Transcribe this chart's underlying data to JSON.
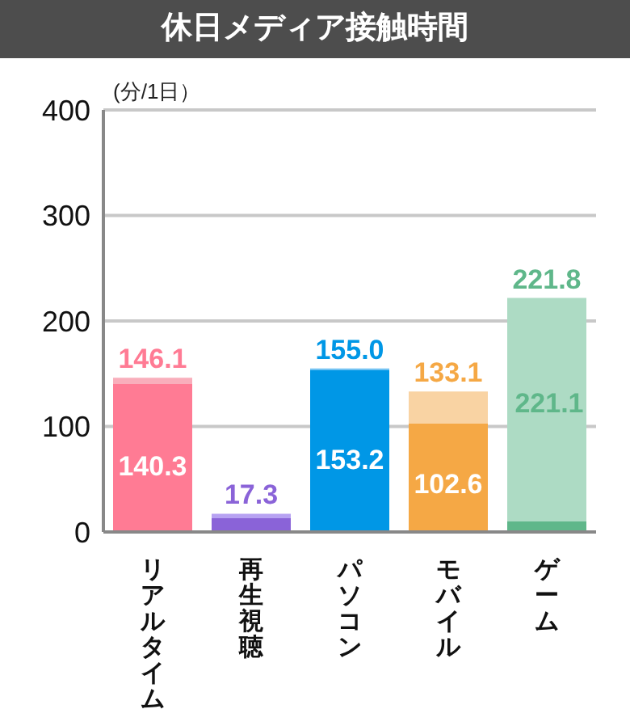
{
  "chart_data": {
    "type": "bar",
    "title": "休日メディア接触時間",
    "ylabel": "(分/1日）",
    "categories": [
      "リアルタイム",
      "再生視聴",
      "パソコン",
      "モバイル",
      "ゲーム"
    ],
    "stacked": true,
    "series": [
      {
        "colors": [
          "#ff7b94",
          "#8a63d8",
          "#0097e6",
          "#f5a845",
          "#5fb78a"
        ],
        "values": [
          140.3,
          13,
          153.2,
          102.6,
          10
        ],
        "value_labels": [
          "140.3",
          null,
          "153.2",
          "102.6",
          null
        ]
      },
      {
        "colors": [
          "#f9aebb",
          "#b7a2f2",
          "#72c2f2",
          "#f9d3a3",
          "#addbc4"
        ],
        "values": [
          5.8,
          4.3,
          1.8,
          30.5,
          211.8
        ]
      }
    ],
    "annotations": [
      "221.1"
    ],
    "totals": [
      "146.1",
      "17.3",
      "155.0",
      "133.1",
      "221.8"
    ],
    "ylim": [
      0,
      400
    ],
    "yticks": [
      0,
      100,
      200,
      300,
      400
    ],
    "grid": "y"
  }
}
